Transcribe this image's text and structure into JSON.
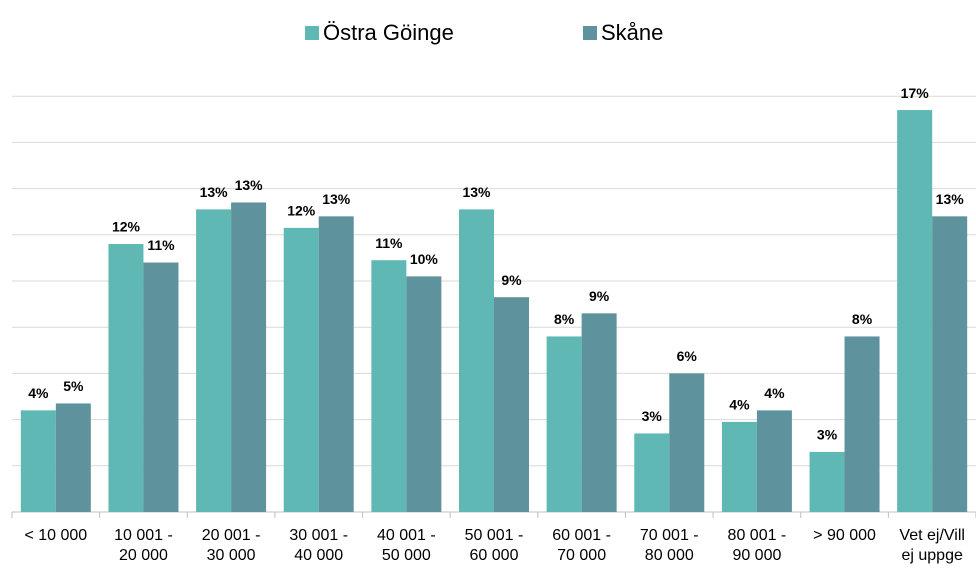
{
  "chart_data": {
    "type": "bar",
    "categories": [
      "< 10 000",
      "10 001 -\n20 000",
      "20 001 -\n30 000",
      "30 001 -\n40 000",
      "40 001 -\n50 000",
      "50 001 -\n60 000",
      "60 001 -\n70 000",
      "70 001 -\n80 000",
      "80 001 -\n90 000",
      "> 90 000",
      "Vet ej/Vill\nej uppge"
    ],
    "series": [
      {
        "name": "Östra Göinge",
        "color": "#5fb8b3",
        "values": [
          4.4,
          11.6,
          13.1,
          12.3,
          10.9,
          13.1,
          7.6,
          3.4,
          3.9,
          2.6,
          17.4
        ],
        "value_labels": [
          "4%",
          "12%",
          "13%",
          "12%",
          "11%",
          "13%",
          "8%",
          "3%",
          "4%",
          "3%",
          "17%"
        ]
      },
      {
        "name": "Skåne",
        "color": "#5e939d",
        "values": [
          4.7,
          10.8,
          13.4,
          12.8,
          10.2,
          9.3,
          8.6,
          6.0,
          4.4,
          7.6,
          12.8
        ],
        "value_labels": [
          "5%",
          "11%",
          "13%",
          "13%",
          "10%",
          "9%",
          "9%",
          "6%",
          "4%",
          "8%",
          "13%"
        ]
      }
    ],
    "ylim": [
      0,
      20
    ],
    "yticks": [
      0,
      2,
      4,
      6,
      8,
      10,
      12,
      14,
      16,
      18
    ],
    "grid": true
  }
}
